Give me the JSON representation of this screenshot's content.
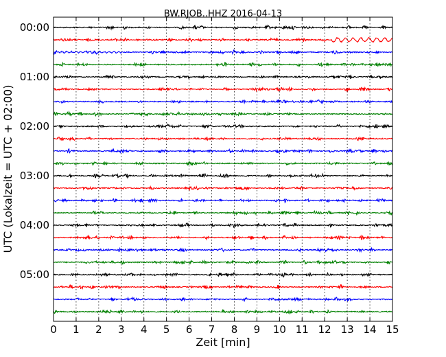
{
  "chart_data": {
    "type": "line",
    "title": "BW.RJOB..HHZ 2016-04-13",
    "xlabel": "Zeit  [min]",
    "ylabel": "UTC (Lokalzeit = UTC + 02:00)",
    "xlim": [
      0,
      15
    ],
    "x_ticks": [
      "0",
      "1",
      "2",
      "3",
      "4",
      "5",
      "6",
      "7",
      "8",
      "9",
      "10",
      "11",
      "12",
      "13",
      "14",
      "15"
    ],
    "y_tick_labels": [
      "00:00",
      "01:00",
      "02:00",
      "03:00",
      "04:00",
      "05:00"
    ],
    "trace_interval_minutes": 15,
    "trace_count": 24,
    "trace_colors": [
      "#000000",
      "#ff0000",
      "#0000ff",
      "#008000"
    ],
    "vertical_grid": "dotted",
    "events": [
      {
        "trace": 1,
        "x_start_min": 12.3,
        "x_end_min": 15,
        "note": "oscillation"
      }
    ]
  }
}
